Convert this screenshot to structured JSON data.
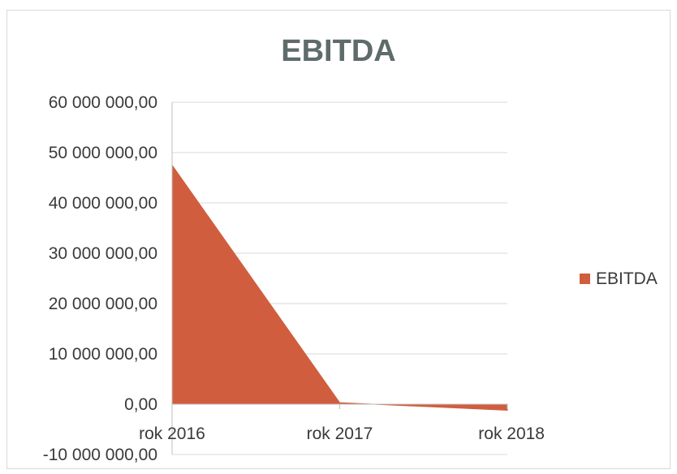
{
  "chart_data": {
    "type": "area",
    "title": "EBITDA",
    "xlabel": "",
    "ylabel": "",
    "categories": [
      "rok 2016",
      "rok 2017",
      "rok 2018"
    ],
    "series": [
      {
        "name": "EBITDA",
        "values": [
          47500000,
          300000,
          -1200000
        ],
        "color": "#d05e3e"
      }
    ],
    "ylim": [
      -10000000,
      60000000
    ],
    "yticks": [
      {
        "value": 60000000,
        "label": "60 000 000,00"
      },
      {
        "value": 50000000,
        "label": "50 000 000,00"
      },
      {
        "value": 40000000,
        "label": "40 000 000,00"
      },
      {
        "value": 30000000,
        "label": "30 000 000,00"
      },
      {
        "value": 20000000,
        "label": "20 000 000,00"
      },
      {
        "value": 10000000,
        "label": "10 000 000,00"
      },
      {
        "value": 0,
        "label": "0,00"
      },
      {
        "value": -10000000,
        "label": "-10 000 000,00"
      }
    ],
    "grid": true,
    "legend": "right",
    "colors": {
      "gridline": "#d9d9d9",
      "axis": "#bfbfbf",
      "title": "#5f6b6b"
    }
  }
}
